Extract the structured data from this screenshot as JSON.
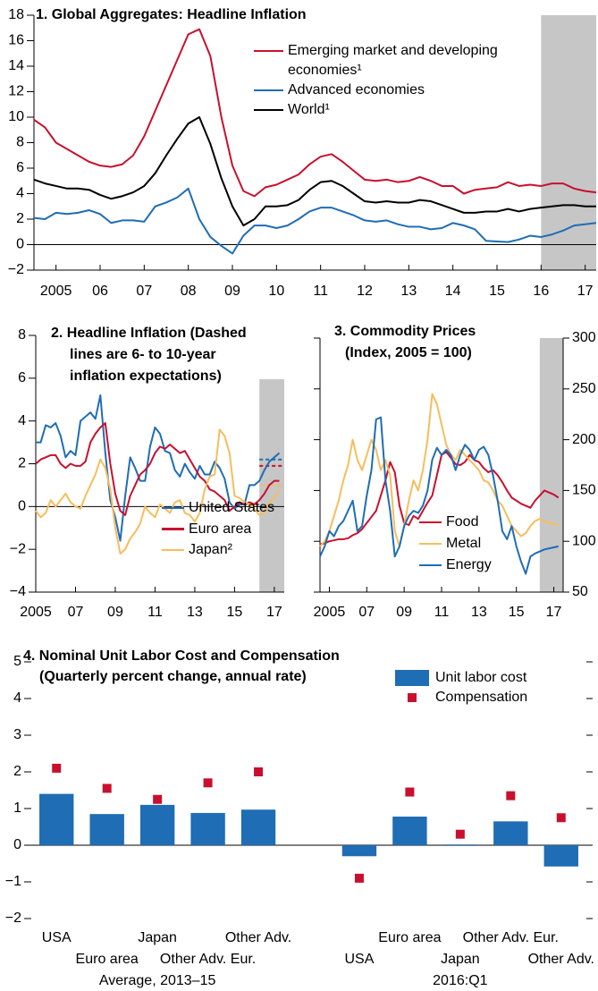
{
  "chart_data": [
    {
      "type": "line",
      "title": "1. Global Aggregates: Headline Inflation",
      "x": [
        2004.5,
        2004.75,
        2005,
        2005.25,
        2005.5,
        2005.75,
        2006,
        2006.25,
        2006.5,
        2006.75,
        2007,
        2007.25,
        2007.5,
        2007.75,
        2008,
        2008.25,
        2008.5,
        2008.75,
        2009,
        2009.25,
        2009.5,
        2009.75,
        2010,
        2010.25,
        2010.5,
        2010.75,
        2011,
        2011.25,
        2011.5,
        2011.75,
        2012,
        2012.25,
        2012.5,
        2012.75,
        2013,
        2013.25,
        2013.5,
        2013.75,
        2014,
        2014.25,
        2014.5,
        2014.75,
        2015,
        2015.25,
        2015.5,
        2015.75,
        2016,
        2016.25,
        2016.5,
        2016.75,
        2017,
        2017.25
      ],
      "xlim": [
        2004.5,
        2017.25
      ],
      "xticks": [
        {
          "value": 2005,
          "label": "2005"
        },
        {
          "value": 2006,
          "label": "06"
        },
        {
          "value": 2007,
          "label": "07"
        },
        {
          "value": 2008,
          "label": "08"
        },
        {
          "value": 2009,
          "label": "09"
        },
        {
          "value": 2010,
          "label": "10"
        },
        {
          "value": 2011,
          "label": "11"
        },
        {
          "value": 2012,
          "label": "12"
        },
        {
          "value": 2013,
          "label": "13"
        },
        {
          "value": 2014,
          "label": "14"
        },
        {
          "value": 2015,
          "label": "15"
        },
        {
          "value": 2016,
          "label": "16"
        },
        {
          "value": 2017,
          "label": "17"
        }
      ],
      "ylim": [
        -2,
        18
      ],
      "yticks": [
        {
          "value": -2,
          "label": "−2"
        },
        0,
        2,
        4,
        6,
        8,
        10,
        12,
        14,
        16,
        18
      ],
      "shaded_from": 2016,
      "series": [
        {
          "name": "Emerging market and developing economies¹",
          "color": "#c8102e",
          "values": [
            9.8,
            9.2,
            8,
            7.5,
            7.0,
            6.5,
            6.2,
            6.1,
            6.3,
            7,
            8.5,
            10.5,
            12.5,
            14.5,
            16.5,
            16.9,
            14.8,
            10,
            6.2,
            4.2,
            3.8,
            4.5,
            4.7,
            5.1,
            5.5,
            6.3,
            6.9,
            7.1,
            6.5,
            5.8,
            5.1,
            5.0,
            5.1,
            4.9,
            5.0,
            5.3,
            5.0,
            4.6,
            4.6,
            4.0,
            4.3,
            4.4,
            4.5,
            4.9,
            4.6,
            4.7,
            4.6,
            4.8,
            4.8,
            4.4,
            4.2,
            4.1
          ]
        },
        {
          "name": "Advanced economies",
          "color": "#1f6db4",
          "values": [
            2.1,
            2.0,
            2.5,
            2.4,
            2.5,
            2.7,
            2.4,
            1.7,
            1.9,
            1.9,
            1.8,
            3.0,
            3.3,
            3.7,
            4.4,
            2.0,
            0.6,
            -0.1,
            -0.7,
            0.7,
            1.5,
            1.5,
            1.3,
            1.5,
            2.0,
            2.6,
            2.9,
            2.9,
            2.6,
            2.3,
            1.9,
            1.8,
            1.9,
            1.6,
            1.4,
            1.4,
            1.2,
            1.3,
            1.7,
            1.5,
            1.2,
            0.3,
            0.25,
            0.2,
            0.4,
            0.7,
            0.6,
            0.8,
            1.1,
            1.5,
            1.6,
            1.7
          ]
        },
        {
          "name": "World¹",
          "color": "#000000",
          "values": [
            5.1,
            4.8,
            4.6,
            4.4,
            4.4,
            4.3,
            3.9,
            3.6,
            3.8,
            4.1,
            4.6,
            5.6,
            7,
            8.3,
            9.5,
            10,
            7.9,
            5.2,
            3,
            1.5,
            2,
            3,
            3,
            3.1,
            3.5,
            4.3,
            4.9,
            5,
            4.6,
            4,
            3.4,
            3.3,
            3.4,
            3.3,
            3.3,
            3.5,
            3.4,
            3.1,
            2.8,
            2.5,
            2.5,
            2.6,
            2.6,
            2.8,
            2.6,
            2.8,
            2.9,
            3.0,
            3.1,
            3.1,
            3.0,
            3.0
          ]
        }
      ]
    },
    {
      "type": "line",
      "title": "2. Headline Inflation (Dashed lines are 6- to 10-year inflation expectations)",
      "x": [
        2005,
        2005.25,
        2005.5,
        2005.75,
        2006,
        2006.25,
        2006.5,
        2006.75,
        2007,
        2007.25,
        2007.5,
        2007.75,
        2008,
        2008.25,
        2008.5,
        2008.75,
        2009,
        2009.25,
        2009.5,
        2009.75,
        2010,
        2010.25,
        2010.5,
        2010.75,
        2011,
        2011.25,
        2011.5,
        2011.75,
        2012,
        2012.25,
        2012.5,
        2012.75,
        2013,
        2013.25,
        2013.5,
        2013.75,
        2014,
        2014.25,
        2014.5,
        2014.75,
        2015,
        2015.25,
        2015.5,
        2015.75,
        2016,
        2016.25,
        2016.5,
        2016.75,
        2017,
        2017.25
      ],
      "xlim": [
        2005,
        2017.5
      ],
      "xticks": [
        {
          "value": 2005,
          "label": "2005"
        },
        {
          "value": 2007,
          "label": "07"
        },
        {
          "value": 2009,
          "label": "09"
        },
        {
          "value": 2011,
          "label": "11"
        },
        {
          "value": 2013,
          "label": "13"
        },
        {
          "value": 2015,
          "label": "15"
        },
        {
          "value": 2017,
          "label": "17"
        }
      ],
      "ylim": [
        -4,
        8
      ],
      "yticks": [
        {
          "value": -4,
          "label": "−4"
        },
        {
          "value": -2,
          "label": "−2"
        },
        0,
        2,
        4,
        6,
        8
      ],
      "shaded_from": 2016.25,
      "expectations": [
        2.2,
        1.9,
        1.0
      ],
      "series": [
        {
          "name": "United States",
          "color": "#1f6db4",
          "values": [
            3.0,
            3.0,
            3.8,
            3.7,
            3.9,
            3.3,
            2.3,
            2.6,
            2.4,
            4.0,
            4.2,
            4.4,
            4.1,
            5.2,
            2.5,
            0.3,
            -0.5,
            -1.6,
            0.5,
            2.3,
            1.8,
            1.2,
            1.2,
            2.8,
            3.7,
            3.4,
            2.6,
            2.5,
            1.7,
            1.4,
            2.0,
            1.6,
            1.3,
            1.9,
            1.5,
            1.5,
            2.1,
            1.8,
            1.3,
            0.2,
            -0.1,
            0.1,
            0.1,
            1.0,
            1.0,
            1.2,
            1.7,
            2.1,
            2.3,
            2.5
          ]
        },
        {
          "name": "Euro area",
          "color": "#c8102e",
          "values": [
            2.0,
            2.2,
            2.3,
            2.4,
            2.4,
            2.0,
            1.8,
            2.0,
            1.9,
            1.9,
            2.1,
            3.0,
            3.4,
            3.7,
            3.9,
            2.0,
            0.6,
            -0.2,
            -0.4,
            0.5,
            1.0,
            1.5,
            1.7,
            2.0,
            2.5,
            2.8,
            2.7,
            2.9,
            2.7,
            2.5,
            2.6,
            2.2,
            1.8,
            1.4,
            1.2,
            0.8,
            0.7,
            0.5,
            0.3,
            -0.2,
            0.0,
            0.2,
            0.1,
            0.2,
            0.1,
            0.3,
            0.6,
            1.0,
            1.2,
            1.2
          ]
        },
        {
          "name": "Japan²",
          "color": "#f7bd5c",
          "values": [
            -0.2,
            -0.5,
            -0.3,
            0.3,
            0.0,
            0.3,
            0.6,
            0.2,
            0.0,
            -0.1,
            0.5,
            1.0,
            1.5,
            2.2,
            1.8,
            0.8,
            -1.0,
            -2.2,
            -2.0,
            -1.5,
            -1.2,
            -0.8,
            0.0,
            -0.3,
            -0.5,
            0.1,
            -0.1,
            -0.3,
            0.2,
            0.3,
            -0.3,
            -0.4,
            -0.7,
            -0.3,
            0.8,
            1.4,
            1.5,
            3.6,
            3.3,
            2.5,
            0.5,
            0.4,
            0.2,
            0.1,
            -0.1,
            -0.4,
            -0.3,
            0.2,
            0.4,
            0.8
          ]
        }
      ]
    },
    {
      "type": "line",
      "title": "3. Commodity Prices",
      "subtitle": "(Index, 2005 = 100)",
      "x": [
        2004.5,
        2004.75,
        2005,
        2005.25,
        2005.5,
        2005.75,
        2006,
        2006.25,
        2006.5,
        2006.75,
        2007,
        2007.25,
        2007.5,
        2007.75,
        2008,
        2008.25,
        2008.5,
        2008.75,
        2009,
        2009.25,
        2009.5,
        2009.75,
        2010,
        2010.25,
        2010.5,
        2010.75,
        2011,
        2011.25,
        2011.5,
        2011.75,
        2012,
        2012.25,
        2012.5,
        2012.75,
        2013,
        2013.25,
        2013.5,
        2013.75,
        2014,
        2014.25,
        2014.5,
        2014.75,
        2015,
        2015.25,
        2015.5,
        2015.75,
        2016,
        2016.25,
        2016.5,
        2016.75,
        2017,
        2017.25
      ],
      "xlim": [
        2004.5,
        2017.5
      ],
      "xticks": [
        {
          "value": 2005,
          "label": "2005"
        },
        {
          "value": 2007,
          "label": "07"
        },
        {
          "value": 2009,
          "label": "09"
        },
        {
          "value": 2011,
          "label": "11"
        },
        {
          "value": 2013,
          "label": "13"
        },
        {
          "value": 2015,
          "label": "15"
        },
        {
          "value": 2017,
          "label": "17"
        }
      ],
      "ylim": [
        50,
        300
      ],
      "yticks": [
        50,
        100,
        150,
        200,
        250,
        300
      ],
      "shaded_from": 2016.25,
      "series": [
        {
          "name": "Food",
          "color": "#c8102e",
          "values": [
            97,
            98,
            100,
            101,
            102,
            102,
            103,
            106,
            108,
            112,
            118,
            124,
            130,
            145,
            160,
            178,
            168,
            135,
            118,
            116,
            125,
            122,
            130,
            138,
            145,
            165,
            185,
            188,
            182,
            176,
            175,
            178,
            185,
            180,
            178,
            172,
            168,
            170,
            165,
            158,
            150,
            143,
            140,
            137,
            135,
            133,
            140,
            145,
            150,
            148,
            146,
            143
          ]
        },
        {
          "name": "Metal",
          "color": "#f7bd5c",
          "values": [
            95,
            100,
            110,
            125,
            140,
            160,
            175,
            200,
            180,
            170,
            185,
            200,
            190,
            170,
            180,
            165,
            110,
            95,
            115,
            140,
            160,
            150,
            170,
            200,
            245,
            235,
            215,
            195,
            185,
            180,
            190,
            185,
            180,
            175,
            170,
            160,
            158,
            150,
            140,
            135,
            125,
            115,
            110,
            105,
            108,
            115,
            120,
            122,
            120,
            118,
            117,
            116
          ]
        },
        {
          "name": "Energy",
          "color": "#1f6db4",
          "values": [
            85,
            95,
            110,
            105,
            115,
            120,
            130,
            140,
            110,
            115,
            145,
            170,
            220,
            222,
            160,
            130,
            85,
            95,
            115,
            125,
            130,
            128,
            135,
            150,
            180,
            192,
            185,
            190,
            185,
            170,
            185,
            195,
            190,
            180,
            190,
            193,
            185,
            165,
            140,
            110,
            102,
            115,
            95,
            80,
            68,
            85,
            88,
            90,
            92,
            93,
            94,
            95
          ]
        }
      ]
    },
    {
      "type": "bar",
      "title": "4. Nominal Unit Labor Cost and Compensation",
      "subtitle": "(Quarterly percent change, annual rate)",
      "categories": [
        "USA",
        "Euro area",
        "Japan",
        "Other Adv. Eur.",
        "Other Adv.",
        null,
        "USA",
        "Euro area",
        "Japan",
        "Other Adv. Eur.",
        "Other Adv."
      ],
      "groups": [
        "Average, 2013–15",
        "2016:Q1"
      ],
      "ylim": [
        -2,
        5
      ],
      "yticks": [
        {
          "value": -2,
          "label": "−2"
        },
        {
          "value": -1,
          "label": "−1"
        },
        0,
        1,
        2,
        3,
        4,
        5
      ],
      "series": [
        {
          "name": "Unit labor cost",
          "color": "#1f6db4",
          "values": [
            1.4,
            0.85,
            1.1,
            0.88,
            0.97,
            null,
            -0.3,
            0.78,
            0.02,
            0.65,
            -0.58
          ]
        },
        {
          "name": "Compensation",
          "color": "#c8102e",
          "mark": "square",
          "values": [
            2.1,
            1.55,
            1.25,
            1.7,
            2.0,
            null,
            -0.9,
            1.45,
            0.3,
            1.35,
            0.75
          ]
        }
      ]
    }
  ]
}
